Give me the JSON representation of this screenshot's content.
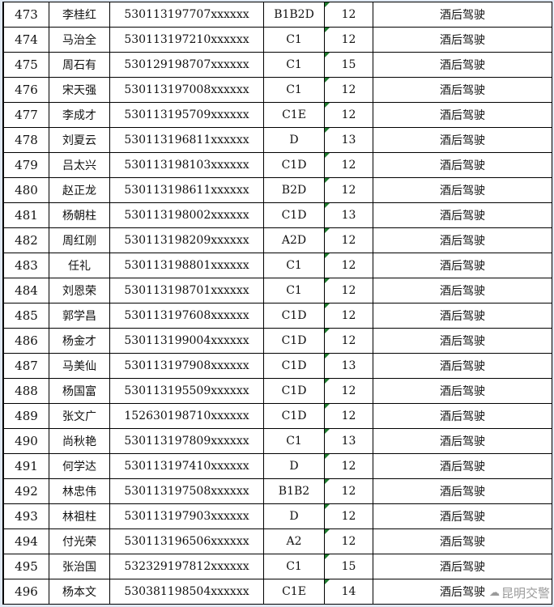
{
  "rows": [
    {
      "no": "473",
      "name": "李桂红",
      "id": "530113197707xxxxxx",
      "license": "B1B2D",
      "points": "12",
      "reason": "酒后驾驶"
    },
    {
      "no": "474",
      "name": "马治全",
      "id": "530113197210xxxxxx",
      "license": "C1",
      "points": "12",
      "reason": "酒后驾驶"
    },
    {
      "no": "475",
      "name": "周石有",
      "id": "530129198707xxxxxx",
      "license": "C1",
      "points": "15",
      "reason": "酒后驾驶"
    },
    {
      "no": "476",
      "name": "宋天强",
      "id": "530113197008xxxxxx",
      "license": "C1",
      "points": "12",
      "reason": "酒后驾驶"
    },
    {
      "no": "477",
      "name": "李成才",
      "id": "530113195709xxxxxx",
      "license": "C1E",
      "points": "12",
      "reason": "酒后驾驶"
    },
    {
      "no": "478",
      "name": "刘夏云",
      "id": "530113196811xxxxxx",
      "license": "D",
      "points": "13",
      "reason": "酒后驾驶"
    },
    {
      "no": "479",
      "name": "吕太兴",
      "id": "530113198103xxxxxx",
      "license": "C1D",
      "points": "12",
      "reason": "酒后驾驶"
    },
    {
      "no": "480",
      "name": "赵正龙",
      "id": "530113198611xxxxxx",
      "license": "B2D",
      "points": "12",
      "reason": "酒后驾驶"
    },
    {
      "no": "481",
      "name": "杨朝柱",
      "id": "530113198002xxxxxx",
      "license": "C1D",
      "points": "13",
      "reason": "酒后驾驶"
    },
    {
      "no": "482",
      "name": "周红刚",
      "id": "530113198209xxxxxx",
      "license": "A2D",
      "points": "12",
      "reason": "酒后驾驶"
    },
    {
      "no": "483",
      "name": "任礼",
      "id": "530113198801xxxxxx",
      "license": "C1",
      "points": "12",
      "reason": "酒后驾驶"
    },
    {
      "no": "484",
      "name": "刘恩荣",
      "id": "530113198701xxxxxx",
      "license": "C1",
      "points": "12",
      "reason": "酒后驾驶"
    },
    {
      "no": "485",
      "name": "郭学昌",
      "id": "530113197608xxxxxx",
      "license": "C1D",
      "points": "12",
      "reason": "酒后驾驶"
    },
    {
      "no": "486",
      "name": "杨金才",
      "id": "530113199004xxxxxx",
      "license": "C1D",
      "points": "12",
      "reason": "酒后驾驶"
    },
    {
      "no": "487",
      "name": "马美仙",
      "id": "530113197908xxxxxx",
      "license": "C1D",
      "points": "13",
      "reason": "酒后驾驶"
    },
    {
      "no": "488",
      "name": "杨国富",
      "id": "530113195509xxxxxx",
      "license": "C1D",
      "points": "12",
      "reason": "酒后驾驶"
    },
    {
      "no": "489",
      "name": "张文广",
      "id": "152630198710xxxxxx",
      "license": "C1D",
      "points": "12",
      "reason": "酒后驾驶"
    },
    {
      "no": "490",
      "name": "尚秋艳",
      "id": "530113197809xxxxxx",
      "license": "C1",
      "points": "13",
      "reason": "酒后驾驶"
    },
    {
      "no": "491",
      "name": "何学达",
      "id": "530113197410xxxxxx",
      "license": "D",
      "points": "12",
      "reason": "酒后驾驶"
    },
    {
      "no": "492",
      "name": "林忠伟",
      "id": "530113197508xxxxxx",
      "license": "B1B2",
      "points": "12",
      "reason": "酒后驾驶"
    },
    {
      "no": "493",
      "name": "林祖柱",
      "id": "530113197903xxxxxx",
      "license": "D",
      "points": "12",
      "reason": "酒后驾驶"
    },
    {
      "no": "494",
      "name": "付光荣",
      "id": "530113196506xxxxxx",
      "license": "A2",
      "points": "12",
      "reason": "酒后驾驶"
    },
    {
      "no": "495",
      "name": "张治国",
      "id": "532329197812xxxxxx",
      "license": "C1",
      "points": "15",
      "reason": "酒后驾驶"
    },
    {
      "no": "496",
      "name": "杨本文",
      "id": "530381198504xxxxxx",
      "license": "C1E",
      "points": "14",
      "reason": "酒后驾驶"
    }
  ],
  "watermark": {
    "text": "昆明交警",
    "icon": "wechat-icon"
  },
  "colors": {
    "grid": "#000000",
    "error_marker": "#1f7a2e",
    "frame": "#dfe8f3"
  }
}
